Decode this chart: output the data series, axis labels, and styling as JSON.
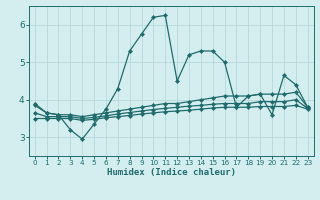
{
  "title": "",
  "xlabel": "Humidex (Indice chaleur)",
  "xlim": [
    -0.5,
    23.5
  ],
  "ylim": [
    2.5,
    6.5
  ],
  "yticks": [
    3,
    4,
    5,
    6
  ],
  "xticks": [
    0,
    1,
    2,
    3,
    4,
    5,
    6,
    7,
    8,
    9,
    10,
    11,
    12,
    13,
    14,
    15,
    16,
    17,
    18,
    19,
    20,
    21,
    22,
    23
  ],
  "background_color": "#d4eef0",
  "grid_color": "#b8d8dc",
  "line_color": "#1f6b6b",
  "series_volatile": {
    "x": [
      0,
      1,
      2,
      3,
      4,
      5,
      6,
      7,
      8,
      9,
      10,
      11,
      12,
      13,
      14,
      15,
      16,
      17,
      18,
      19,
      20,
      21,
      22,
      23
    ],
    "y": [
      3.9,
      3.65,
      3.6,
      3.2,
      2.95,
      3.35,
      3.75,
      4.3,
      5.3,
      5.75,
      6.2,
      6.25,
      4.5,
      5.2,
      5.3,
      5.3,
      5.0,
      3.8,
      4.1,
      4.15,
      3.6,
      4.65,
      4.4,
      3.8
    ]
  },
  "series_upper": {
    "x": [
      0,
      1,
      2,
      3,
      4,
      5,
      6,
      7,
      8,
      9,
      10,
      11,
      12,
      13,
      14,
      15,
      16,
      17,
      18,
      19,
      20,
      21,
      22,
      23
    ],
    "y": [
      3.85,
      3.65,
      3.6,
      3.6,
      3.55,
      3.6,
      3.65,
      3.7,
      3.75,
      3.8,
      3.85,
      3.9,
      3.9,
      3.95,
      4.0,
      4.05,
      4.1,
      4.1,
      4.1,
      4.15,
      4.15,
      4.15,
      4.2,
      3.8
    ]
  },
  "series_lower": {
    "x": [
      0,
      1,
      2,
      3,
      4,
      5,
      6,
      7,
      8,
      9,
      10,
      11,
      12,
      13,
      14,
      15,
      16,
      17,
      18,
      19,
      20,
      21,
      22,
      23
    ],
    "y": [
      3.5,
      3.5,
      3.5,
      3.5,
      3.45,
      3.48,
      3.52,
      3.55,
      3.58,
      3.62,
      3.65,
      3.68,
      3.7,
      3.72,
      3.75,
      3.78,
      3.8,
      3.8,
      3.8,
      3.82,
      3.82,
      3.82,
      3.85,
      3.75
    ]
  },
  "series_mid": {
    "x": [
      0,
      1,
      2,
      3,
      4,
      5,
      6,
      7,
      8,
      9,
      10,
      11,
      12,
      13,
      14,
      15,
      16,
      17,
      18,
      19,
      20,
      21,
      22,
      23
    ],
    "y": [
      3.65,
      3.55,
      3.55,
      3.55,
      3.5,
      3.53,
      3.57,
      3.62,
      3.66,
      3.7,
      3.74,
      3.77,
      3.8,
      3.83,
      3.85,
      3.88,
      3.9,
      3.9,
      3.9,
      3.95,
      3.95,
      3.95,
      4.0,
      3.77
    ]
  }
}
